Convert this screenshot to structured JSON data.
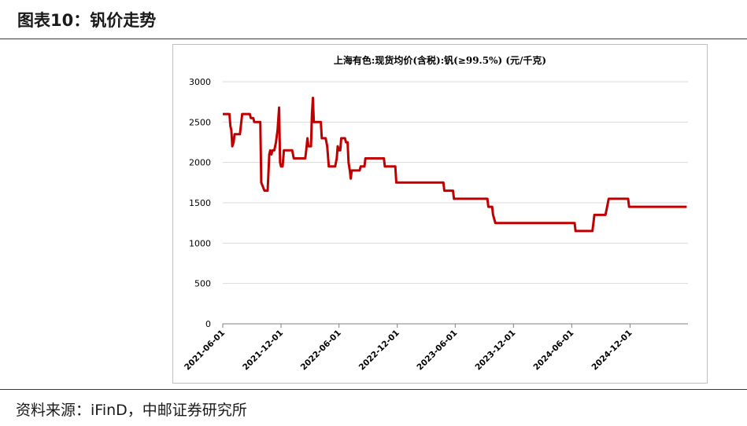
{
  "figure": {
    "title": "图表10：钒价走势",
    "source": "资料来源：iFinD，中邮证券研究所"
  },
  "colors": {
    "line": "#c00000",
    "rule": "#c00000",
    "grid": "#d9d9d9"
  },
  "chart_data": {
    "type": "line",
    "title": "上海有色:现货均价(含税):钒(≥99.5%) (元/千克)",
    "xlabel": "",
    "ylabel": "",
    "ylim": [
      0,
      3000
    ],
    "yticks": [
      0,
      500,
      1000,
      1500,
      2000,
      2500,
      3000
    ],
    "xlim": [
      "2021-06-01",
      "2025-06-01"
    ],
    "xticks": [
      "2021-06-01",
      "2021-12-01",
      "2022-06-01",
      "2022-12-01",
      "2023-06-01",
      "2023-12-01",
      "2024-06-01",
      "2024-12-01"
    ],
    "grid": "horizontal",
    "series": [
      {
        "name": "",
        "points": [
          [
            "2021-06-01",
            2600
          ],
          [
            "2021-06-22",
            2600
          ],
          [
            "2021-06-25",
            2450
          ],
          [
            "2021-06-28",
            2400
          ],
          [
            "2021-07-01",
            2200
          ],
          [
            "2021-07-05",
            2250
          ],
          [
            "2021-07-08",
            2350
          ],
          [
            "2021-07-25",
            2350
          ],
          [
            "2021-08-01",
            2600
          ],
          [
            "2021-08-25",
            2600
          ],
          [
            "2021-08-28",
            2550
          ],
          [
            "2021-09-05",
            2550
          ],
          [
            "2021-09-08",
            2500
          ],
          [
            "2021-09-27",
            2500
          ],
          [
            "2021-09-30",
            1750
          ],
          [
            "2021-10-10",
            1650
          ],
          [
            "2021-10-20",
            1650
          ],
          [
            "2021-10-25",
            2100
          ],
          [
            "2021-10-28",
            2150
          ],
          [
            "2021-11-01",
            2100
          ],
          [
            "2021-11-04",
            2150
          ],
          [
            "2021-11-10",
            2150
          ],
          [
            "2021-11-15",
            2250
          ],
          [
            "2021-11-20",
            2400
          ],
          [
            "2021-11-25",
            2680
          ],
          [
            "2021-11-28",
            2000
          ],
          [
            "2021-12-01",
            1950
          ],
          [
            "2021-12-06",
            1950
          ],
          [
            "2021-12-10",
            2150
          ],
          [
            "2022-01-05",
            2150
          ],
          [
            "2022-01-10",
            2050
          ],
          [
            "2022-02-15",
            2050
          ],
          [
            "2022-02-18",
            2150
          ],
          [
            "2022-02-22",
            2300
          ],
          [
            "2022-02-25",
            2200
          ],
          [
            "2022-03-05",
            2200
          ],
          [
            "2022-03-08",
            2600
          ],
          [
            "2022-03-11",
            2800
          ],
          [
            "2022-03-14",
            2500
          ],
          [
            "2022-04-05",
            2500
          ],
          [
            "2022-04-08",
            2300
          ],
          [
            "2022-04-20",
            2300
          ],
          [
            "2022-04-25",
            2200
          ],
          [
            "2022-04-30",
            1950
          ],
          [
            "2022-05-20",
            1950
          ],
          [
            "2022-05-25",
            2050
          ],
          [
            "2022-05-28",
            2200
          ],
          [
            "2022-06-01",
            2150
          ],
          [
            "2022-06-05",
            2150
          ],
          [
            "2022-06-08",
            2300
          ],
          [
            "2022-06-20",
            2300
          ],
          [
            "2022-06-23",
            2250
          ],
          [
            "2022-06-28",
            2250
          ],
          [
            "2022-07-01",
            2000
          ],
          [
            "2022-07-05",
            1900
          ],
          [
            "2022-07-08",
            1800
          ],
          [
            "2022-07-11",
            1900
          ],
          [
            "2022-08-05",
            1900
          ],
          [
            "2022-08-08",
            1950
          ],
          [
            "2022-08-20",
            1950
          ],
          [
            "2022-08-23",
            2050
          ],
          [
            "2022-10-20",
            2050
          ],
          [
            "2022-10-23",
            1950
          ],
          [
            "2022-11-25",
            1950
          ],
          [
            "2022-11-28",
            1750
          ],
          [
            "2023-04-25",
            1750
          ],
          [
            "2023-04-28",
            1650
          ],
          [
            "2023-05-25",
            1650
          ],
          [
            "2023-05-28",
            1550
          ],
          [
            "2023-09-10",
            1550
          ],
          [
            "2023-09-13",
            1450
          ],
          [
            "2023-09-25",
            1450
          ],
          [
            "2023-09-28",
            1350
          ],
          [
            "2023-10-05",
            1250
          ],
          [
            "2024-06-10",
            1250
          ],
          [
            "2024-06-13",
            1150
          ],
          [
            "2024-08-05",
            1150
          ],
          [
            "2024-08-08",
            1250
          ],
          [
            "2024-08-11",
            1350
          ],
          [
            "2024-09-15",
            1350
          ],
          [
            "2024-09-20",
            1450
          ],
          [
            "2024-09-25",
            1550
          ],
          [
            "2024-11-25",
            1550
          ],
          [
            "2024-11-28",
            1450
          ],
          [
            "2025-05-28",
            1450
          ]
        ]
      }
    ]
  }
}
